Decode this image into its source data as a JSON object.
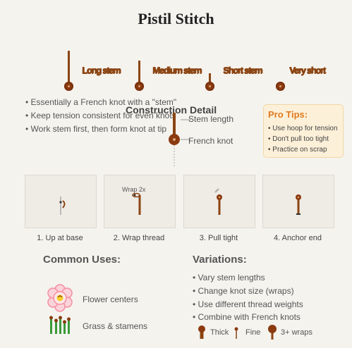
{
  "title": "Pistil Stitch",
  "variations_row": [
    {
      "label": "Long stem"
    },
    {
      "label": "Medium stem"
    },
    {
      "label": "Short stem"
    },
    {
      "label": "Very short"
    }
  ],
  "bullets": [
    "• Essentially a French knot with a \"stem\"",
    "• Keep tension consistent for even knots",
    "• Work stem first, then form knot at tip"
  ],
  "construction": {
    "title": "Construction Detail",
    "stem_label": "Stem length",
    "knot_label": "French knot"
  },
  "pro_tips": {
    "title": "Pro Tips:",
    "items": [
      "• Use hoop for tension",
      "• Don't pull too tight",
      "• Practice on scrap"
    ]
  },
  "steps": [
    {
      "caption": "1. Up at base",
      "note": ""
    },
    {
      "caption": "2. Wrap thread",
      "note": "Wrap 2x"
    },
    {
      "caption": "3. Pull tight",
      "note": ""
    },
    {
      "caption": "4. Anchor end",
      "note": ""
    }
  ],
  "common_uses": {
    "title": "Common Uses:",
    "items": [
      {
        "label": "Flower centers",
        "icon": "flower-icon"
      },
      {
        "label": "Grass & stamens",
        "icon": "grass-icon"
      }
    ]
  },
  "variations": {
    "title": "Variations:",
    "items": [
      "• Vary stem lengths",
      "• Change knot size (wraps)",
      "• Use different thread weights",
      "• Combine with French knots"
    ],
    "legend": [
      {
        "label": "Thick"
      },
      {
        "label": "Fine"
      },
      {
        "label": "3+ wraps"
      }
    ]
  },
  "colors": {
    "thread": "#8b4513",
    "knot": "#8b3a0f",
    "tips_heading": "#e07a20",
    "tips_bg": "#fcf0d8",
    "grass": "#3a9a3a",
    "flower_petals": "#f48fa0"
  }
}
